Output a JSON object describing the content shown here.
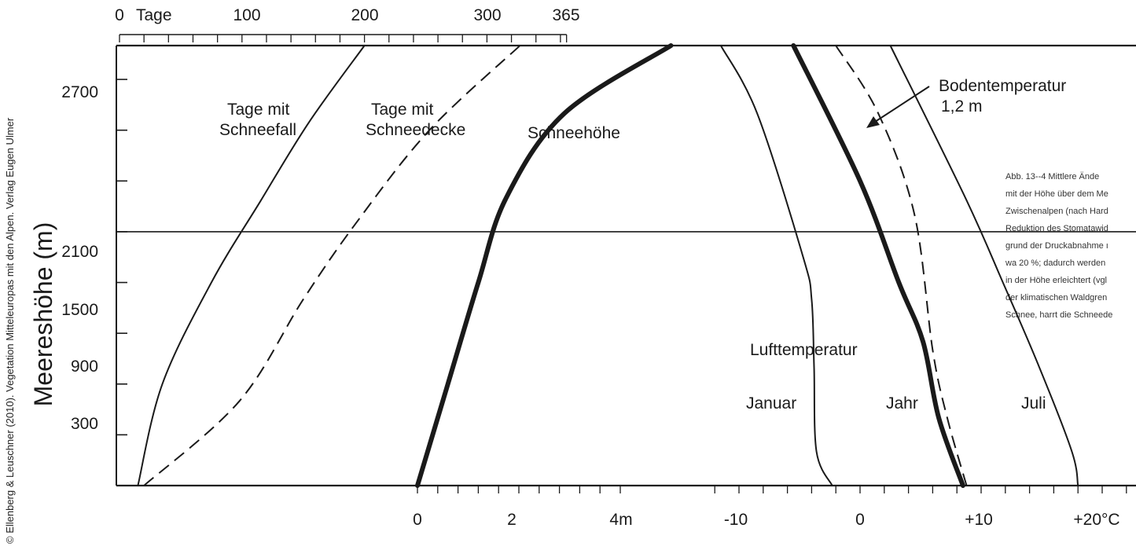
{
  "credit": "© Ellenberg & Leuschner (2010). Vegetation Mitteleuropas mit den Alpen. Verlag Eugen Ulmer",
  "caption_lines": [
    "Abb. 13--4  Mittlere Ände",
    "mit der Höhe über dem Me",
    "Zwischenalpen (nach Hard",
    "Reduktion des Stomatawid",
    "grund der Druckabnahme ı",
    "wa 20 %; dadurch werden",
    "in der Höhe erleichtert (vgl",
    "der klimatischen Waldgren",
    "Schnee, harrt die Schneede"
  ],
  "chart_data": {
    "type": "line",
    "ylabel": "Meereshöhe (m)",
    "y_ticks": [
      "300",
      "900",
      "1500",
      "2100",
      "2700"
    ],
    "ylim": [
      300,
      2900
    ],
    "top_axis": {
      "unit_label": "Tage",
      "ticks": [
        "0",
        "100",
        "200",
        "300",
        "365"
      ],
      "range": [
        0,
        365
      ]
    },
    "bottom_axis_snow": {
      "ticks": [
        "0",
        "2",
        "4m"
      ],
      "range": [
        0,
        4
      ]
    },
    "bottom_axis_temp": {
      "ticks": [
        "-10",
        "0",
        "+10",
        "+20°C"
      ],
      "range": [
        -10,
        20
      ]
    },
    "reference_line_m": 1800,
    "labels": {
      "schneefall": [
        "Tage mit",
        "Schneefall"
      ],
      "schneedecke": [
        "Tage mit",
        "Schneedecke"
      ],
      "schneehoehe": "Schneehöhe",
      "bodentemperatur": [
        "Bodentemperatur",
        "1,2 m"
      ],
      "lufttemperatur": "Lufttemperatur",
      "januar": "Januar",
      "jahr": "Jahr",
      "juli": "Juli"
    },
    "series": [
      {
        "name": "Tage mit Schneefall",
        "axis": "days",
        "style": "solid",
        "points": [
          [
            15,
            300
          ],
          [
            35,
            900
          ],
          [
            75,
            1500
          ],
          [
            115,
            1980
          ],
          [
            155,
            2450
          ],
          [
            200,
            2900
          ]
        ]
      },
      {
        "name": "Tage mit Schneedecke",
        "axis": "days",
        "style": "dashed",
        "points": [
          [
            20,
            300
          ],
          [
            98,
            800
          ],
          [
            150,
            1400
          ],
          [
            193,
            1850
          ],
          [
            253,
            2400
          ],
          [
            327,
            2900
          ]
        ]
      },
      {
        "name": "Schneehöhe",
        "axis": "snow",
        "style": "thick",
        "points": [
          [
            0.0,
            300
          ],
          [
            0.6,
            900
          ],
          [
            1.2,
            1500
          ],
          [
            1.75,
            2000
          ],
          [
            2.9,
            2500
          ],
          [
            5.0,
            2900
          ]
        ]
      },
      {
        "name": "Lufttemperatur Januar",
        "axis": "temp",
        "style": "solid",
        "points": [
          [
            -2.3,
            300
          ],
          [
            -3.6,
            500
          ],
          [
            -3.8,
            1000
          ],
          [
            -4.0,
            1400
          ],
          [
            -4.7,
            1650
          ],
          [
            -8.5,
            2500
          ],
          [
            -11.5,
            2900
          ]
        ]
      },
      {
        "name": "Lufttemperatur Jahr",
        "axis": "temp",
        "style": "thick",
        "points": [
          [
            8.5,
            300
          ],
          [
            6.5,
            700
          ],
          [
            5.2,
            1150
          ],
          [
            3.2,
            1500
          ],
          [
            0,
            2100
          ],
          [
            -5.5,
            2900
          ]
        ]
      },
      {
        "name": "Bodentemperatur 1,2 m",
        "axis": "temp",
        "style": "dashed",
        "points": [
          [
            8.8,
            300
          ],
          [
            7.2,
            700
          ],
          [
            6.0,
            1100
          ],
          [
            4.5,
            1900
          ],
          [
            1.5,
            2500
          ],
          [
            -2,
            2900
          ]
        ]
      },
      {
        "name": "Lufttemperatur Juli",
        "axis": "temp",
        "style": "solid",
        "points": [
          [
            18.0,
            300
          ],
          [
            17.5,
            500
          ],
          [
            14.8,
            1000
          ],
          [
            11.8,
            1500
          ],
          [
            8.7,
            2000
          ],
          [
            2.5,
            2900
          ]
        ]
      }
    ]
  }
}
